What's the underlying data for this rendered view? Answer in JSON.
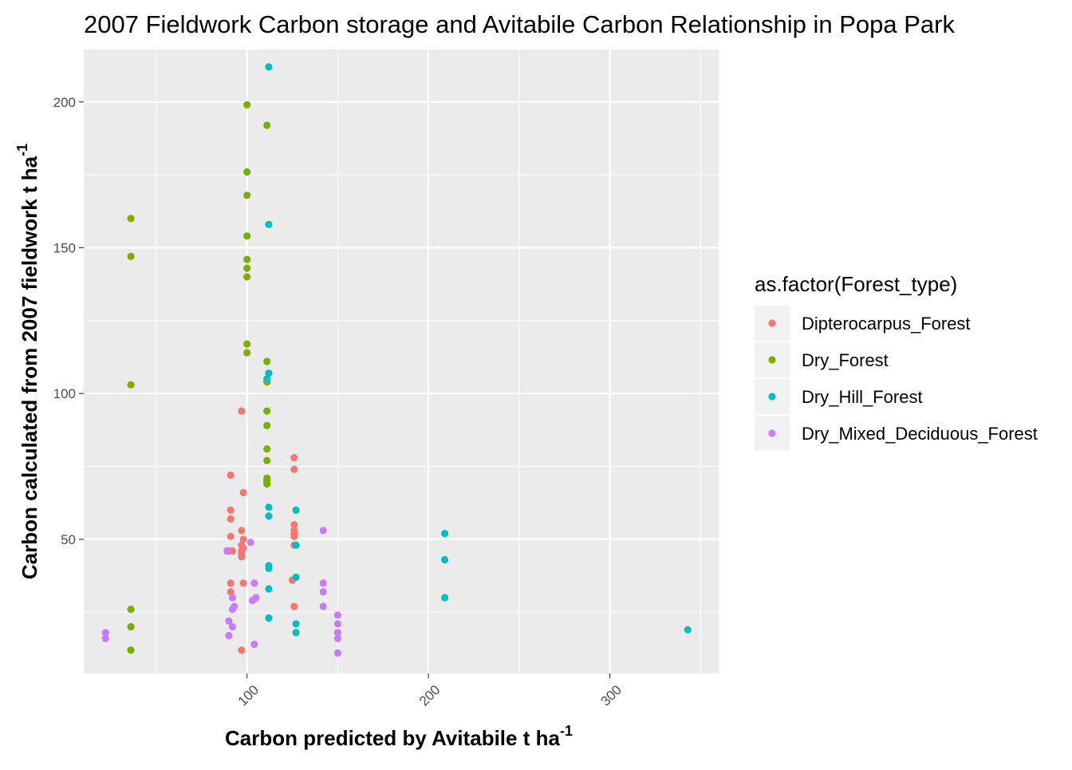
{
  "chart_data": {
    "type": "scatter",
    "title": "2007 Fieldwork Carbon storage and Avitabile Carbon Relationship in Popa Park",
    "xlabel": "Carbon predicted by Avitabile t ha",
    "xlabel_sup": "-1",
    "ylabel": "Carbon calculated from 2007 fieldwork t ha",
    "ylabel_sup": "-1",
    "xlim": [
      10,
      360
    ],
    "ylim": [
      4,
      218
    ],
    "x_ticks": [
      100,
      200,
      300
    ],
    "x_tick_labels": [
      "100",
      "200",
      "300"
    ],
    "y_ticks": [
      50,
      100,
      150,
      200
    ],
    "y_tick_labels": [
      "50",
      "100",
      "150",
      "200"
    ],
    "grid": true,
    "legend_position": "right",
    "legend_title": "as.factor(Forest_type)",
    "series": [
      {
        "name": "Dipterocarpus_Forest",
        "color": "#F8766D",
        "points": [
          [
            97,
            94
          ],
          [
            91,
            72
          ],
          [
            98,
            66
          ],
          [
            91,
            60
          ],
          [
            91,
            57
          ],
          [
            97,
            53
          ],
          [
            91,
            51
          ],
          [
            98,
            50
          ],
          [
            97,
            48
          ],
          [
            98,
            47
          ],
          [
            97,
            46
          ],
          [
            90,
            46
          ],
          [
            92,
            46
          ],
          [
            97,
            45
          ],
          [
            97,
            44
          ],
          [
            91,
            35
          ],
          [
            98,
            35
          ],
          [
            91,
            32
          ],
          [
            97,
            12
          ],
          [
            126,
            78
          ],
          [
            126,
            74
          ],
          [
            126,
            55
          ],
          [
            126,
            53
          ],
          [
            126,
            52
          ],
          [
            126,
            51
          ],
          [
            126,
            48
          ],
          [
            125,
            36
          ],
          [
            126,
            27
          ]
        ]
      },
      {
        "name": "Dry_Forest",
        "color": "#7CAE00",
        "points": [
          [
            100,
            199
          ],
          [
            111,
            192
          ],
          [
            100,
            176
          ],
          [
            100,
            168
          ],
          [
            100,
            154
          ],
          [
            100,
            146
          ],
          [
            100,
            143
          ],
          [
            100,
            140
          ],
          [
            100,
            117
          ],
          [
            100,
            114
          ],
          [
            111,
            111
          ],
          [
            111,
            104
          ],
          [
            111,
            94
          ],
          [
            111,
            89
          ],
          [
            111,
            81
          ],
          [
            111,
            77
          ],
          [
            111,
            71
          ],
          [
            111,
            70
          ],
          [
            111,
            69
          ],
          [
            36,
            160
          ],
          [
            36,
            147
          ],
          [
            36,
            103
          ],
          [
            36,
            26
          ],
          [
            36,
            20
          ],
          [
            36,
            12
          ]
        ]
      },
      {
        "name": "Dry_Hill_Forest",
        "color": "#00BFC4",
        "points": [
          [
            112,
            212
          ],
          [
            112,
            158
          ],
          [
            112,
            107
          ],
          [
            111,
            105
          ],
          [
            112,
            61
          ],
          [
            112,
            58
          ],
          [
            112,
            41
          ],
          [
            112,
            40
          ],
          [
            112,
            33
          ],
          [
            112,
            23
          ],
          [
            127,
            60
          ],
          [
            127,
            48
          ],
          [
            127,
            37
          ],
          [
            127,
            21
          ],
          [
            127,
            18
          ],
          [
            209,
            52
          ],
          [
            209,
            43
          ],
          [
            209,
            30
          ],
          [
            343,
            19
          ]
        ]
      },
      {
        "name": "Dry_Mixed_Deciduous_Forest",
        "color": "#C77CFF",
        "points": [
          [
            22,
            18
          ],
          [
            22,
            16
          ],
          [
            89,
            46
          ],
          [
            102,
            49
          ],
          [
            92,
            30
          ],
          [
            92,
            26
          ],
          [
            93,
            27
          ],
          [
            92,
            20
          ],
          [
            90,
            22
          ],
          [
            90,
            17
          ],
          [
            103,
            29
          ],
          [
            105,
            30
          ],
          [
            104,
            35
          ],
          [
            104,
            14
          ],
          [
            142,
            53
          ],
          [
            142,
            35
          ],
          [
            142,
            32
          ],
          [
            142,
            27
          ],
          [
            150,
            24
          ],
          [
            150,
            21
          ],
          [
            150,
            18
          ],
          [
            150,
            16
          ],
          [
            150,
            11
          ]
        ]
      }
    ]
  }
}
